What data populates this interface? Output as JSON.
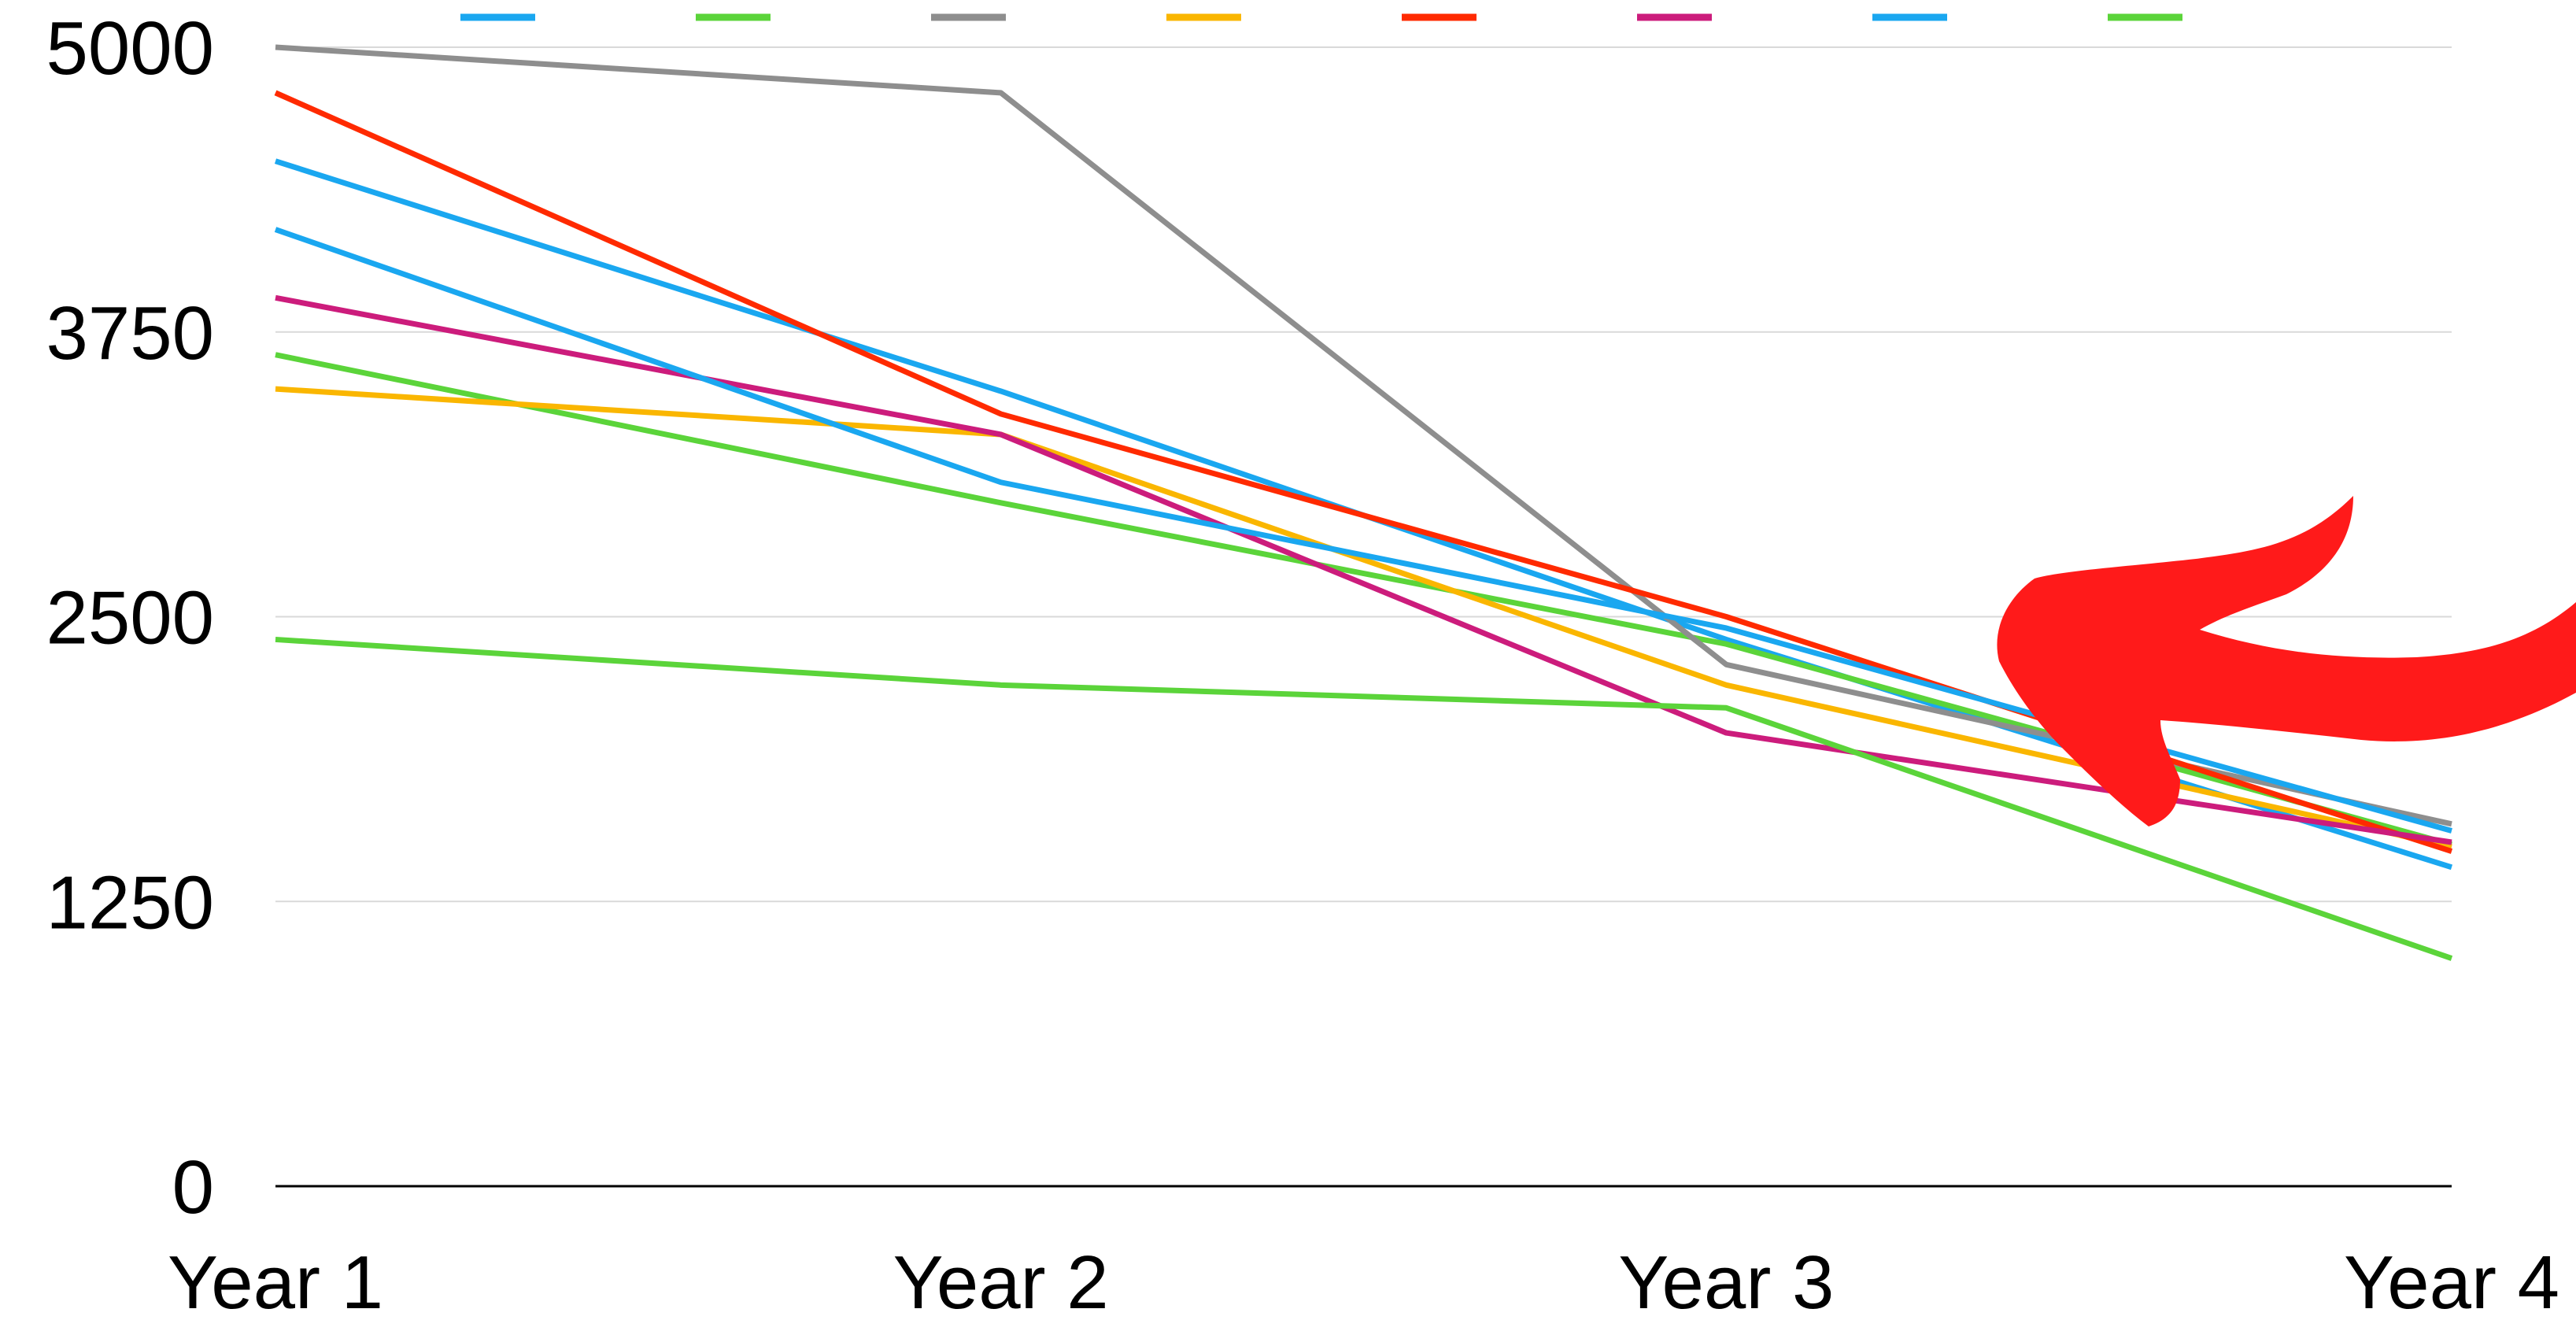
{
  "chart_data": {
    "type": "line",
    "title": "",
    "xlabel": "",
    "ylabel": "",
    "categories": [
      "Year 1",
      "Year 2",
      "Year 3",
      "Year 4"
    ],
    "ylim": [
      0,
      5000
    ],
    "yticks": [
      "0",
      "1250",
      "2500",
      "3750",
      "5000"
    ],
    "grid": true,
    "legend": "top",
    "series": [
      {
        "color": "#1AA7F0",
        "values": [
          4500,
          3490,
          2400,
          1400
        ]
      },
      {
        "color": "#5BD43A",
        "values": [
          3650,
          3000,
          2380,
          1500
        ]
      },
      {
        "color": "#8E8E8E",
        "values": [
          5000,
          4800,
          2290,
          1590
        ]
      },
      {
        "color": "#FAB600",
        "values": [
          3500,
          3300,
          2200,
          1490
        ]
      },
      {
        "color": "#FF2A00",
        "values": [
          4800,
          3390,
          2500,
          1470
        ]
      },
      {
        "color": "#CC1C7C",
        "values": [
          3900,
          3300,
          1990,
          1510
        ]
      },
      {
        "color": "#1AA7F0",
        "values": [
          4200,
          3090,
          2450,
          1560
        ]
      },
      {
        "color": "#5BD43A",
        "values": [
          2400,
          2200,
          2100,
          1000
        ]
      }
    ]
  },
  "annotation": {
    "shape": "arrow",
    "color": "#FF1A1A"
  }
}
